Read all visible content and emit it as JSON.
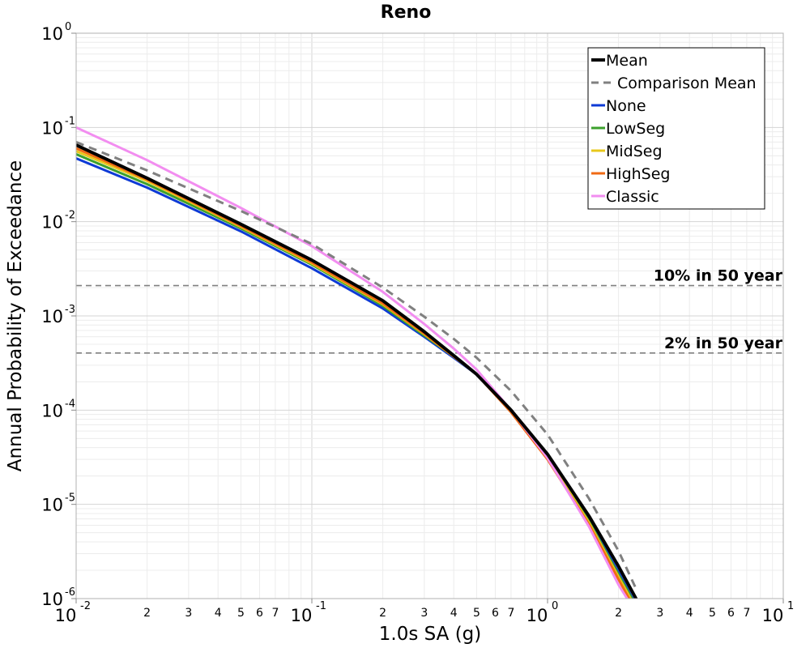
{
  "chart_data": {
    "type": "line",
    "title": "Reno",
    "xlabel": "1.0s SA (g)",
    "ylabel": "Annual Probability of Exceedance",
    "x_scale": "log",
    "y_scale": "log",
    "xlim": [
      0.01,
      10
    ],
    "ylim": [
      1e-06,
      1
    ],
    "grid": true,
    "legend_position": "top-right",
    "x_ticks_major": [
      {
        "base": "10",
        "exp": "-2"
      },
      {
        "base": "10",
        "exp": "-1"
      },
      {
        "base": "10",
        "exp": "0"
      },
      {
        "base": "10",
        "exp": "1"
      }
    ],
    "x_ticks_minor_labels": [
      "2",
      "3",
      "4",
      "5",
      "6",
      "7"
    ],
    "y_ticks_major": [
      {
        "base": "10",
        "exp": "0"
      },
      {
        "base": "10",
        "exp": "-1"
      },
      {
        "base": "10",
        "exp": "-2"
      },
      {
        "base": "10",
        "exp": "-3"
      },
      {
        "base": "10",
        "exp": "-4"
      },
      {
        "base": "10",
        "exp": "-5"
      },
      {
        "base": "10",
        "exp": "-6"
      }
    ],
    "reference_lines": [
      {
        "label": "10% in 50 year",
        "y": 0.0021,
        "color": "#808080"
      },
      {
        "label": "2% in 50 year",
        "y": 0.000404,
        "color": "#808080"
      }
    ],
    "series": [
      {
        "name": "Mean",
        "color": "#000000",
        "width": 4,
        "dash": "",
        "x": [
          0.01,
          0.02,
          0.05,
          0.1,
          0.2,
          0.3,
          0.4,
          0.5,
          0.7,
          1.0,
          1.5,
          2.0,
          2.4
        ],
        "y": [
          0.065,
          0.029,
          0.0094,
          0.0039,
          0.00145,
          0.00068,
          0.00038,
          0.00024,
          0.0001,
          3.4e-05,
          7.5e-06,
          2.2e-06,
          9.5e-07
        ]
      },
      {
        "name": "Comparison Mean",
        "color": "#808080",
        "width": 3,
        "dash": "10,7",
        "x": [
          0.01,
          0.02,
          0.05,
          0.1,
          0.2,
          0.3,
          0.4,
          0.5,
          0.7,
          1.0,
          1.5,
          2.0,
          2.4
        ],
        "y": [
          0.07,
          0.035,
          0.013,
          0.0058,
          0.002,
          0.00098,
          0.00057,
          0.00036,
          0.00016,
          5.5e-05,
          1.15e-05,
          3.2e-06,
          1.2e-06
        ]
      },
      {
        "name": "None",
        "color": "#0d3ad6",
        "width": 3,
        "dash": "",
        "x": [
          0.01,
          0.02,
          0.05,
          0.1,
          0.2,
          0.3,
          0.4,
          0.5,
          0.7,
          1.0,
          1.5,
          2.0,
          2.4
        ],
        "y": [
          0.047,
          0.023,
          0.0079,
          0.0032,
          0.0012,
          0.0006,
          0.00036,
          0.00024,
          9.8e-05,
          3.2e-05,
          6.8e-06,
          1.9e-06,
          8.2e-07
        ]
      },
      {
        "name": "LowSeg",
        "color": "#3ca02c",
        "width": 3,
        "dash": "",
        "x": [
          0.01,
          0.02,
          0.05,
          0.1,
          0.2,
          0.3,
          0.4,
          0.5,
          0.7,
          1.0,
          1.5,
          2.0,
          2.4
        ],
        "y": [
          0.052,
          0.025,
          0.0085,
          0.0035,
          0.00128,
          0.00062,
          0.00037,
          0.00024,
          9.8e-05,
          3.2e-05,
          6.6e-06,
          1.8e-06,
          8e-07
        ]
      },
      {
        "name": "MidSeg",
        "color": "#e8c81c",
        "width": 3,
        "dash": "",
        "x": [
          0.01,
          0.02,
          0.05,
          0.1,
          0.2,
          0.3,
          0.4,
          0.5,
          0.7,
          1.0,
          1.5,
          2.0,
          2.4
        ],
        "y": [
          0.056,
          0.027,
          0.0088,
          0.0036,
          0.00133,
          0.00064,
          0.00037,
          0.00024,
          9.6e-05,
          3.1e-05,
          6.4e-06,
          1.7e-06,
          7.5e-07
        ]
      },
      {
        "name": "HighSeg",
        "color": "#f06a14",
        "width": 3,
        "dash": "",
        "x": [
          0.01,
          0.02,
          0.05,
          0.1,
          0.2,
          0.3,
          0.4,
          0.5,
          0.7,
          1.0,
          1.5,
          2.0,
          2.4
        ],
        "y": [
          0.06,
          0.028,
          0.009,
          0.0037,
          0.00136,
          0.00065,
          0.00037,
          0.00024,
          9.5e-05,
          3e-05,
          6.1e-06,
          1.6e-06,
          7e-07
        ]
      },
      {
        "name": "Classic",
        "color": "#f28df0",
        "width": 3,
        "dash": "",
        "x": [
          0.01,
          0.02,
          0.05,
          0.1,
          0.2,
          0.3,
          0.4,
          0.5,
          0.7,
          1.0,
          1.5,
          2.0,
          2.3
        ],
        "y": [
          0.1,
          0.045,
          0.014,
          0.0055,
          0.0018,
          0.00082,
          0.00045,
          0.00027,
          0.0001,
          3.1e-05,
          5.8e-06,
          1.4e-06,
          8e-07
        ]
      }
    ]
  }
}
